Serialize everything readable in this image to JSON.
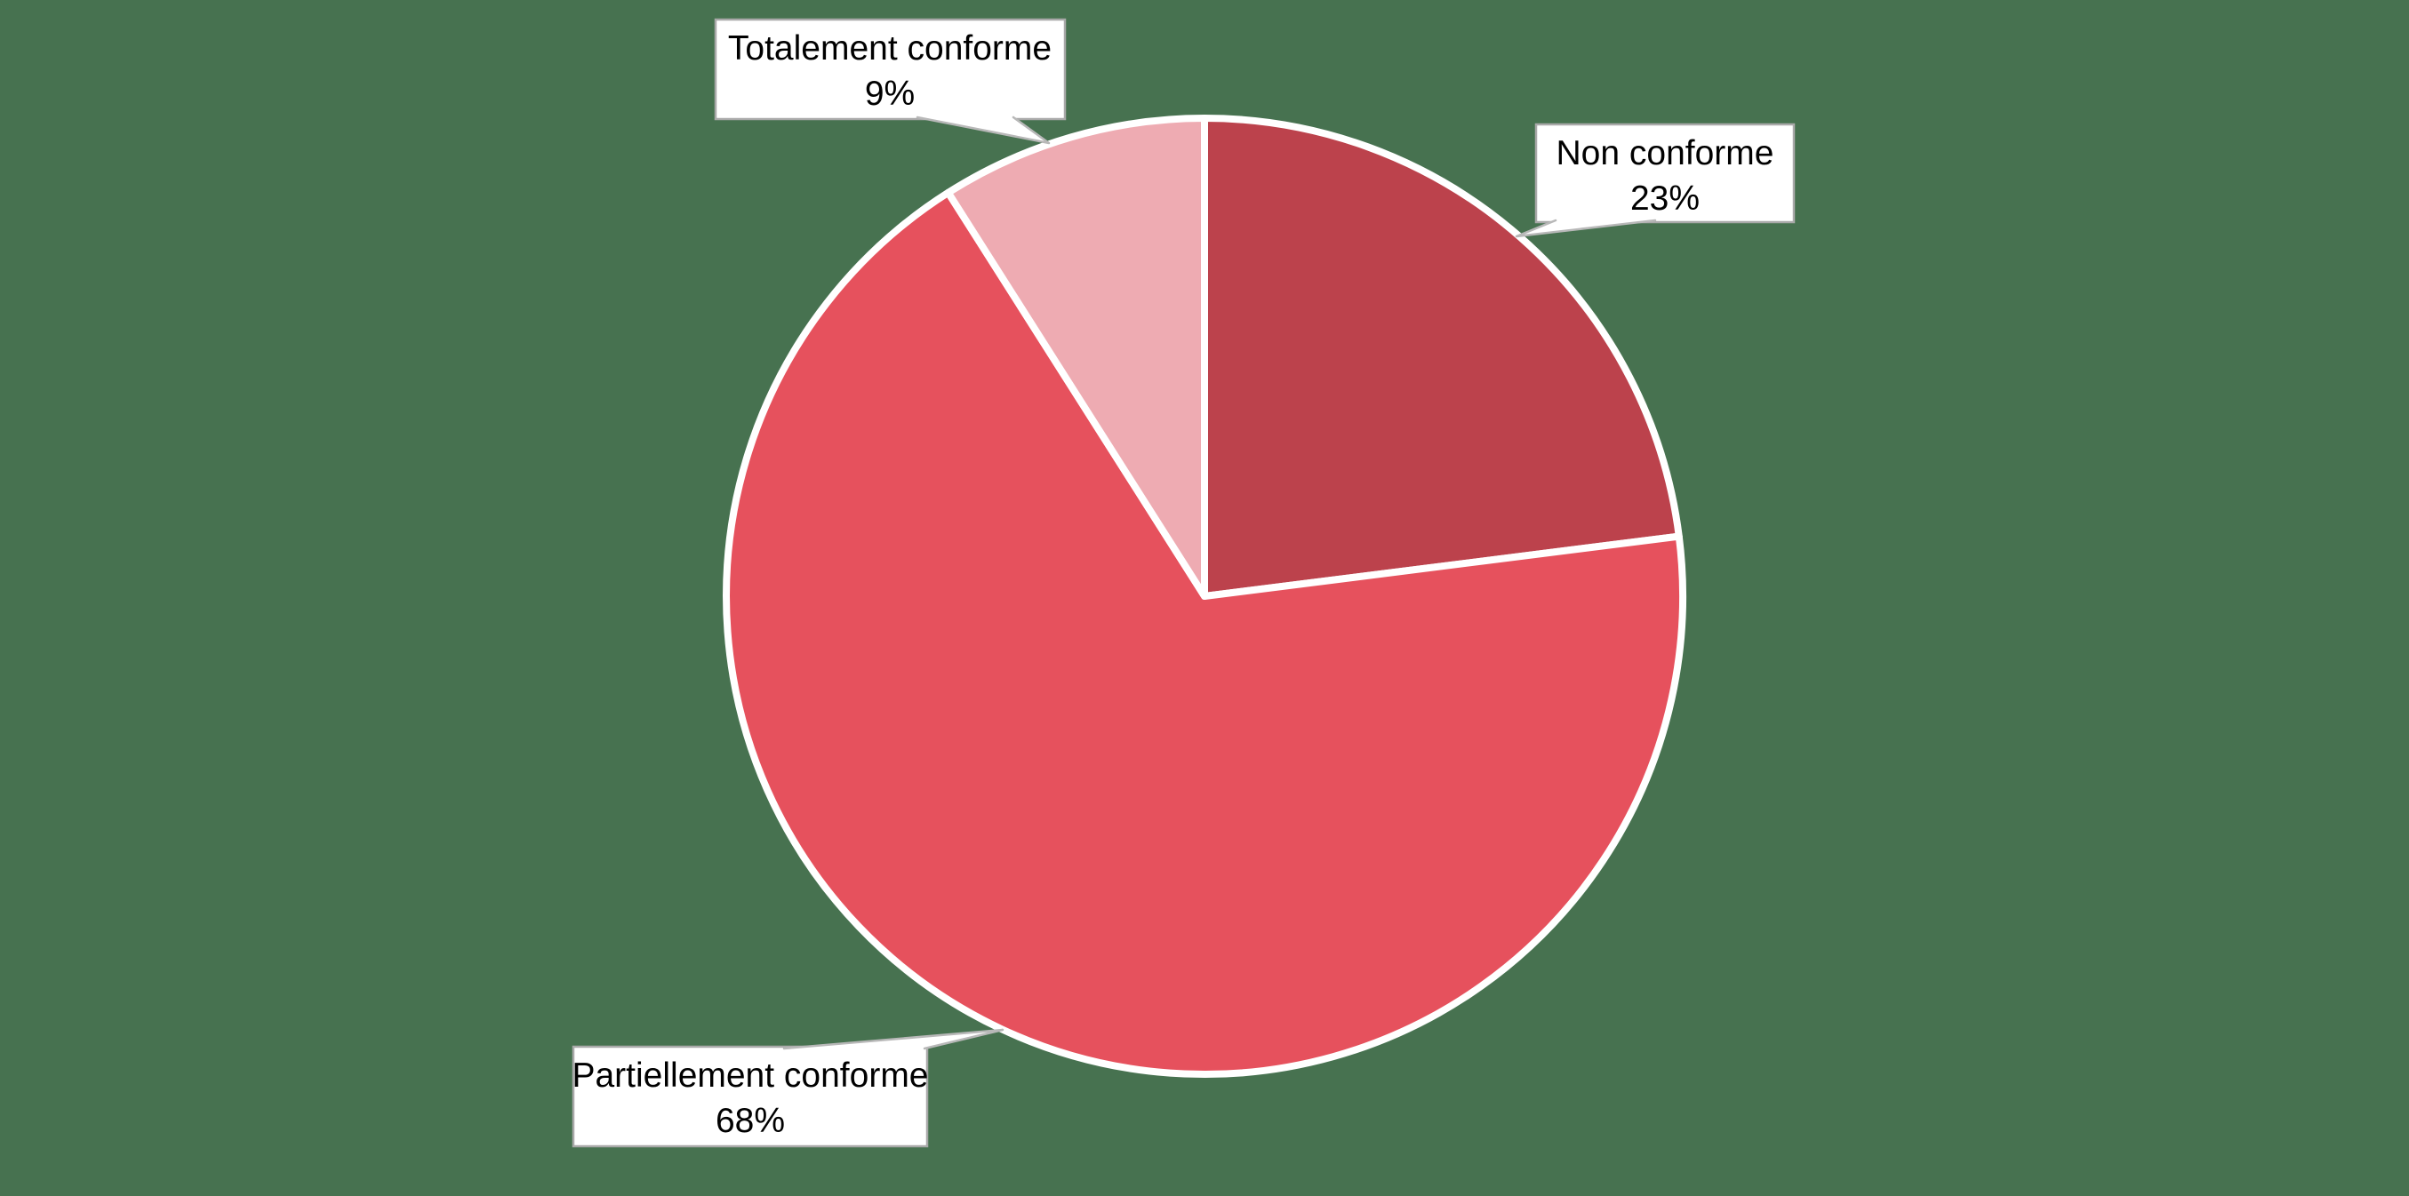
{
  "background_color": "#477250",
  "chart_data": {
    "type": "pie",
    "slices": [
      {
        "label": "Non conforme",
        "value": 23,
        "pct_label": "23%",
        "color": "#BC424C"
      },
      {
        "label": "Partiellement conforme",
        "value": 68,
        "pct_label": "68%",
        "color": "#E6515D"
      },
      {
        "label": "Totalement conforme",
        "value": 9,
        "pct_label": "9%",
        "color": "#EEABB2"
      }
    ],
    "start_angle_deg": 0,
    "direction": "clockwise",
    "slice_border_color": "#FFFFFF",
    "legend": "none",
    "label_style": "callout-boxes",
    "callout": {
      "fill": "#FFFFFF",
      "border_color": "#A9A9A9",
      "leader_color": "#B8B8B8",
      "text_color": "#000000"
    }
  }
}
